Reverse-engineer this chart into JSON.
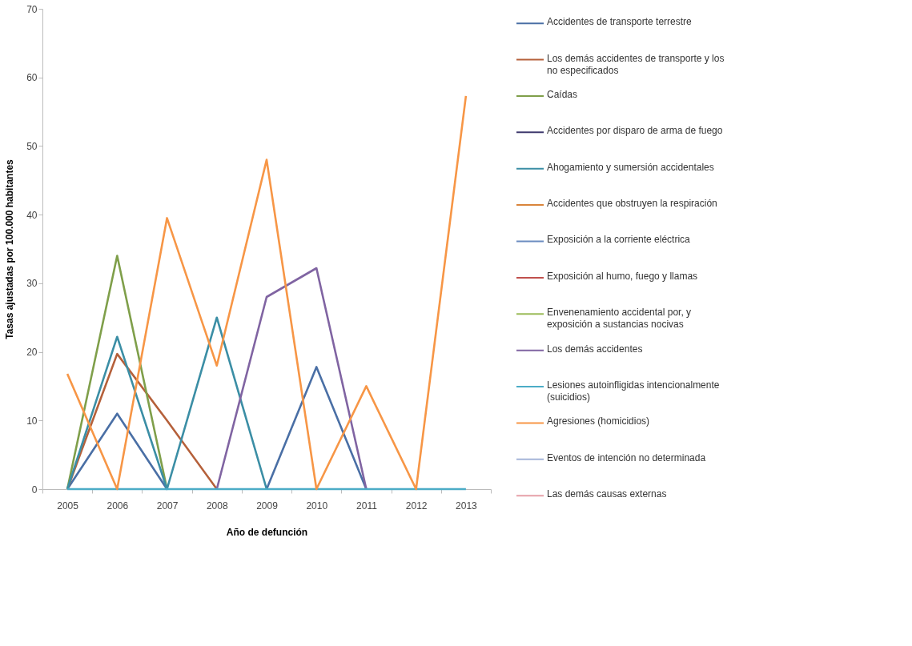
{
  "chart_data": {
    "type": "line",
    "xlabel": "Año de defunción",
    "ylabel": "Tasas ajustadas por 100.000 habitantes",
    "categories": [
      "2005",
      "2006",
      "2007",
      "2008",
      "2009",
      "2010",
      "2011",
      "2012",
      "2013"
    ],
    "ylim": [
      0,
      70
    ],
    "yticks": [
      0,
      10,
      20,
      30,
      40,
      50,
      60,
      70
    ],
    "grid": false,
    "legend": "right",
    "marker": "none",
    "line_style": "solid",
    "series": [
      {
        "name": "Accidentes de transporte terrestre",
        "color": "#4a6fa5",
        "values": [
          0,
          11,
          0,
          null,
          0,
          17.8,
          0,
          null,
          null
        ]
      },
      {
        "name": "Los demás accidentes de transporte y los no especificados",
        "color": "#b5603a",
        "values": [
          0,
          19.7,
          10,
          0,
          null,
          null,
          null,
          null,
          null
        ]
      },
      {
        "name": "Caídas",
        "color": "#7f9f4a",
        "values": [
          0,
          34,
          0,
          null,
          null,
          null,
          null,
          null,
          null
        ]
      },
      {
        "name": "Accidentes por disparo de arma de fuego",
        "color": "#3f3a6e",
        "values": [
          null,
          null,
          null,
          null,
          null,
          null,
          null,
          null,
          null
        ]
      },
      {
        "name": "Ahogamiento y sumersión accidentales",
        "color": "#3b8ea5",
        "values": [
          0,
          22.2,
          0,
          25,
          0,
          null,
          null,
          null,
          null
        ]
      },
      {
        "name": "Accidentes que obstruyen la respiración",
        "color": "#d9853b",
        "values": [
          null,
          null,
          null,
          null,
          null,
          null,
          null,
          null,
          null
        ]
      },
      {
        "name": "Exposición a la corriente eléctrica",
        "color": "#6b8cc0",
        "values": [
          null,
          null,
          null,
          null,
          null,
          null,
          null,
          null,
          null
        ]
      },
      {
        "name": "Exposición al humo, fuego y llamas",
        "color": "#c0504d",
        "values": [
          null,
          null,
          null,
          null,
          null,
          null,
          null,
          null,
          null
        ]
      },
      {
        "name": "Envenenamiento accidental por, y exposición a sustancias nocivas",
        "color": "#9bbb59",
        "values": [
          null,
          null,
          null,
          null,
          null,
          null,
          null,
          null,
          null
        ]
      },
      {
        "name": "Los demás accidentes",
        "color": "#8064a2",
        "values": [
          null,
          null,
          null,
          0,
          28,
          32.2,
          0,
          null,
          null
        ]
      },
      {
        "name": "Lesiones autoinfligidas intencionalmente (suicidios)",
        "color": "#4bacc6",
        "values": [
          0,
          0,
          0,
          0,
          0,
          0,
          0,
          0,
          0
        ]
      },
      {
        "name": "Agresiones (homicidios)",
        "color": "#f79646",
        "values": [
          16.8,
          0,
          39.5,
          18,
          48,
          0,
          15,
          0,
          57.3
        ]
      },
      {
        "name": "Eventos de intención no determinada",
        "color": "#a5b4d8",
        "values": [
          null,
          null,
          null,
          null,
          null,
          null,
          null,
          null,
          null
        ]
      },
      {
        "name": "Las demás causas externas",
        "color": "#e6a0a8",
        "values": [
          null,
          null,
          null,
          null,
          null,
          null,
          null,
          null,
          null
        ]
      }
    ]
  }
}
